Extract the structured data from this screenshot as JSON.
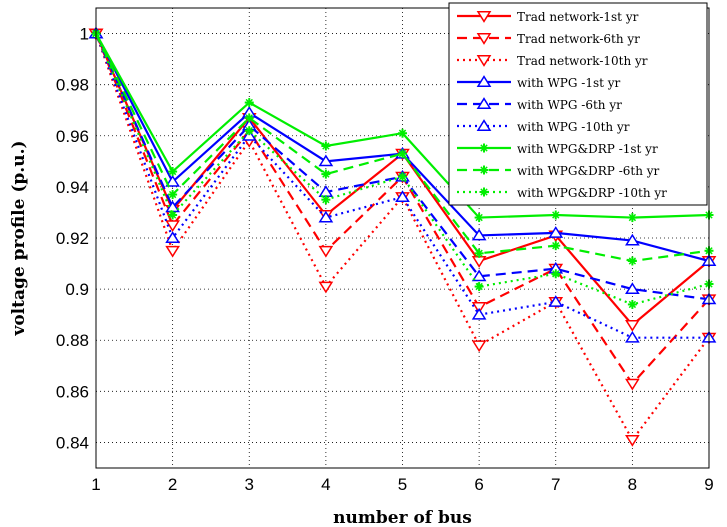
{
  "chart_data": {
    "type": "line",
    "xlabel": "number of bus",
    "ylabel": "voltage profile (p.u.)",
    "xlim": [
      1,
      9
    ],
    "ylim": [
      0.83,
      1.01
    ],
    "xticks": [
      "1",
      "2",
      "3",
      "4",
      "5",
      "6",
      "7",
      "8",
      "9"
    ],
    "yticks": [
      "0.84",
      "0.86",
      "0.88",
      "0.9",
      "0.92",
      "0.94",
      "0.96",
      "0.98",
      "1"
    ],
    "grid": true,
    "legend_position": "top-right",
    "x": [
      1,
      2,
      3,
      4,
      5,
      6,
      7,
      8,
      9
    ],
    "series": [
      {
        "name": "Trad network-1st yr",
        "color": "#ff0000",
        "dash": "solid",
        "marker": "triangle-down",
        "values": [
          1.0,
          0.931,
          0.967,
          0.929,
          0.953,
          0.911,
          0.921,
          0.886,
          0.911
        ]
      },
      {
        "name": "Trad network-6th yr",
        "color": "#ff0000",
        "dash": "dashed",
        "marker": "triangle-down",
        "values": [
          1.0,
          0.925,
          0.962,
          0.915,
          0.944,
          0.893,
          0.908,
          0.863,
          0.896
        ]
      },
      {
        "name": "Trad network-10th yr",
        "color": "#ff0000",
        "dash": "dotted",
        "marker": "triangle-down",
        "values": [
          1.0,
          0.915,
          0.958,
          0.901,
          0.936,
          0.878,
          0.895,
          0.841,
          0.881
        ]
      },
      {
        "name": "with WPG -1st yr",
        "color": "#0000ff",
        "dash": "solid",
        "marker": "triangle-up",
        "values": [
          1.0,
          0.942,
          0.969,
          0.95,
          0.953,
          0.921,
          0.922,
          0.919,
          0.911
        ]
      },
      {
        "name": "with WPG -6th yr",
        "color": "#0000ff",
        "dash": "dashed",
        "marker": "triangle-up",
        "values": [
          1.0,
          0.932,
          0.964,
          0.938,
          0.944,
          0.905,
          0.908,
          0.9,
          0.896
        ]
      },
      {
        "name": "with WPG -10th yr",
        "color": "#0000ff",
        "dash": "dotted",
        "marker": "triangle-up",
        "values": [
          1.0,
          0.92,
          0.96,
          0.928,
          0.936,
          0.89,
          0.895,
          0.881,
          0.881
        ]
      },
      {
        "name": "with WPG&DRP -1st yr",
        "color": "#00ee00",
        "dash": "solid",
        "marker": "star",
        "values": [
          1.0,
          0.946,
          0.973,
          0.956,
          0.961,
          0.928,
          0.929,
          0.928,
          0.929
        ]
      },
      {
        "name": "with WPG&DRP -6th yr",
        "color": "#00ee00",
        "dash": "dashed",
        "marker": "star",
        "values": [
          1.0,
          0.937,
          0.967,
          0.945,
          0.953,
          0.914,
          0.917,
          0.911,
          0.915
        ]
      },
      {
        "name": "with WPG&DRP -10th yr",
        "color": "#00ee00",
        "dash": "dotted",
        "marker": "star",
        "values": [
          1.0,
          0.929,
          0.962,
          0.935,
          0.944,
          0.901,
          0.906,
          0.894,
          0.902
        ]
      }
    ]
  }
}
